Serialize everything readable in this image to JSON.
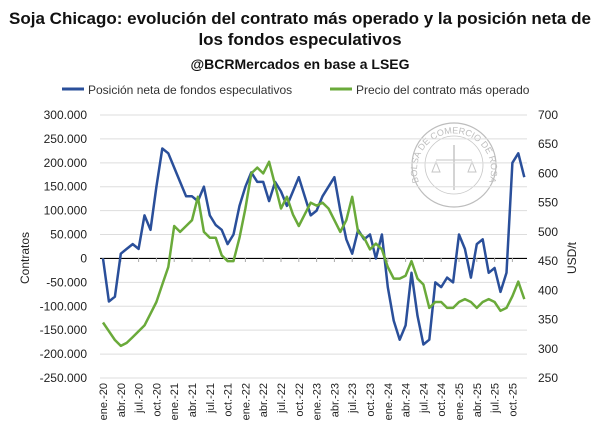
{
  "chart_data": {
    "type": "line",
    "title": "Soja Chicago: evolución del contrato más operado y la posición neta de los fondos especulativos",
    "subtitle": "@BCRMercados en base a LSEG",
    "ylabel_left": "Contratos",
    "ylabel_right": "USD/t",
    "ylim_left": [
      -250000,
      300000
    ],
    "ylim_right": [
      250,
      700
    ],
    "yticks_left": [
      "300.000",
      "250.000",
      "200.000",
      "150.000",
      "100.000",
      "50.000",
      "0",
      "-50.000",
      "-100.000",
      "-150.000",
      "-200.000",
      "-250.000"
    ],
    "yticks_right": [
      "700",
      "650",
      "600",
      "550",
      "500",
      "450",
      "400",
      "350",
      "300",
      "250"
    ],
    "xticks": [
      "ene.-20",
      "abr.-20",
      "jul.-20",
      "oct.-20",
      "ene.-21",
      "abr.-21",
      "jul.-21",
      "oct.-21",
      "ene.-22",
      "abr.-22",
      "jul.-22",
      "oct.-22",
      "ene.-23",
      "abr.-23",
      "jul.-23",
      "oct.-23",
      "ene.-24",
      "abr.-24",
      "jul.-24",
      "oct.-24",
      "ene.-25",
      "abr.-25",
      "jul.-25",
      "oct.-25"
    ],
    "x_start": "2020-01",
    "x_frequency": "monthly",
    "grid": true,
    "legend_placement": "top",
    "series": [
      {
        "name": "Posición neta de fondos especulativos",
        "axis": "left",
        "color": "#2a4f9a",
        "values": [
          0,
          -90000,
          -80000,
          10000,
          20000,
          30000,
          20000,
          90000,
          60000,
          150000,
          230000,
          220000,
          190000,
          160000,
          130000,
          130000,
          120000,
          150000,
          90000,
          70000,
          60000,
          30000,
          50000,
          110000,
          150000,
          180000,
          160000,
          160000,
          120000,
          160000,
          140000,
          110000,
          140000,
          170000,
          130000,
          90000,
          100000,
          130000,
          150000,
          170000,
          100000,
          40000,
          10000,
          60000,
          40000,
          50000,
          0,
          50000,
          -60000,
          -130000,
          -170000,
          -140000,
          -30000,
          -120000,
          -180000,
          -170000,
          -50000,
          -60000,
          -40000,
          -50000,
          50000,
          20000,
          -40000,
          30000,
          40000,
          -30000,
          -20000,
          -70000,
          -30000,
          200000,
          220000,
          170000
        ]
      },
      {
        "name": "Precio del contrato más operado",
        "axis": "right",
        "color": "#6aaa3a",
        "values": [
          345,
          330,
          315,
          305,
          310,
          320,
          330,
          340,
          360,
          380,
          410,
          440,
          510,
          500,
          510,
          520,
          560,
          500,
          490,
          490,
          460,
          450,
          450,
          490,
          540,
          600,
          610,
          600,
          620,
          580,
          540,
          560,
          530,
          510,
          530,
          550,
          545,
          550,
          540,
          520,
          500,
          520,
          560,
          500,
          490,
          470,
          480,
          470,
          440,
          420,
          420,
          425,
          450,
          420,
          410,
          370,
          380,
          380,
          370,
          370,
          380,
          385,
          380,
          370,
          380,
          385,
          380,
          365,
          370,
          390,
          415,
          385
        ]
      }
    ]
  },
  "watermark": "BOLSA DE COMERCIO DE ROSARIO"
}
